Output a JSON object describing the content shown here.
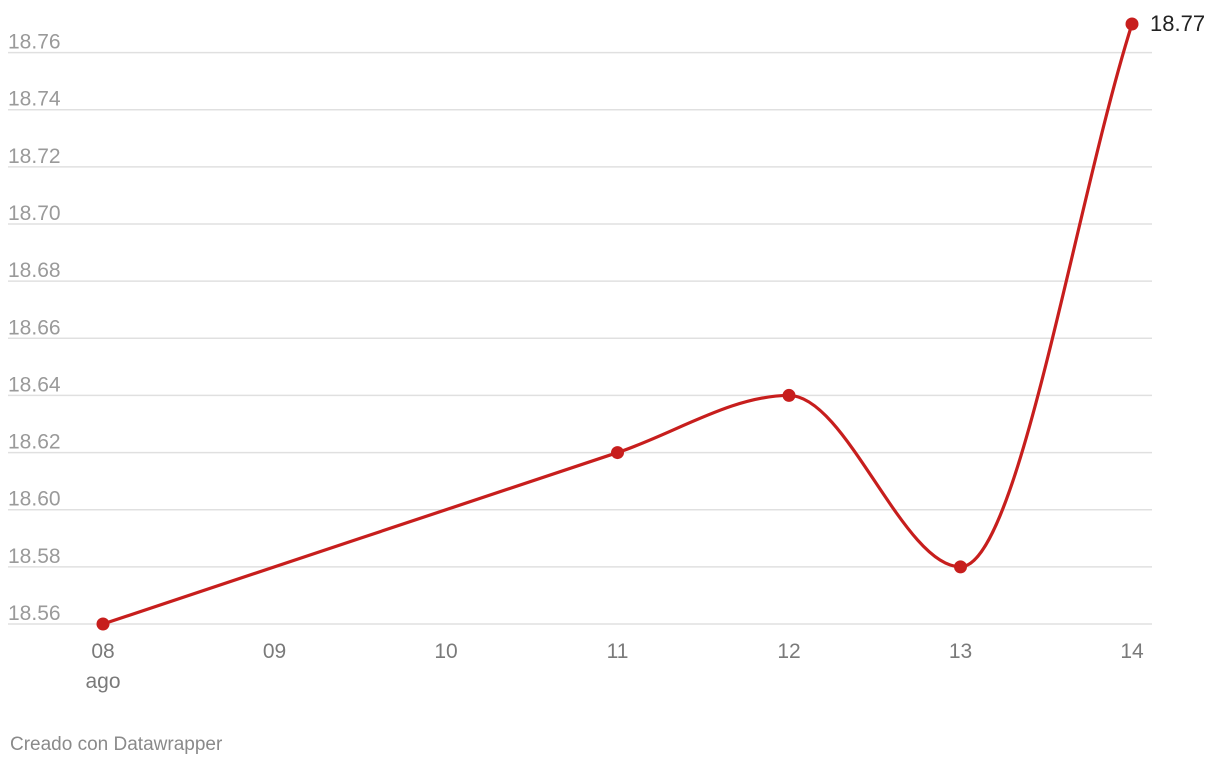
{
  "chart_data": {
    "type": "line",
    "x": [
      "08",
      "09",
      "10",
      "11",
      "12",
      "13",
      "14"
    ],
    "x_sublabel": "ago",
    "points": [
      {
        "x": "08",
        "y": 18.56
      },
      {
        "x": "11",
        "y": 18.62
      },
      {
        "x": "12",
        "y": 18.64
      },
      {
        "x": "13",
        "y": 18.58
      },
      {
        "x": "14",
        "y": 18.77
      }
    ],
    "ylim": [
      18.56,
      18.77
    ],
    "yticks": [
      "18.56",
      "18.58",
      "18.60",
      "18.62",
      "18.64",
      "18.66",
      "18.68",
      "18.70",
      "18.72",
      "18.74",
      "18.76"
    ],
    "end_label": "18.77",
    "grid": true,
    "color": "#c71e1d"
  },
  "footer": {
    "credit": "Creado con Datawrapper"
  }
}
